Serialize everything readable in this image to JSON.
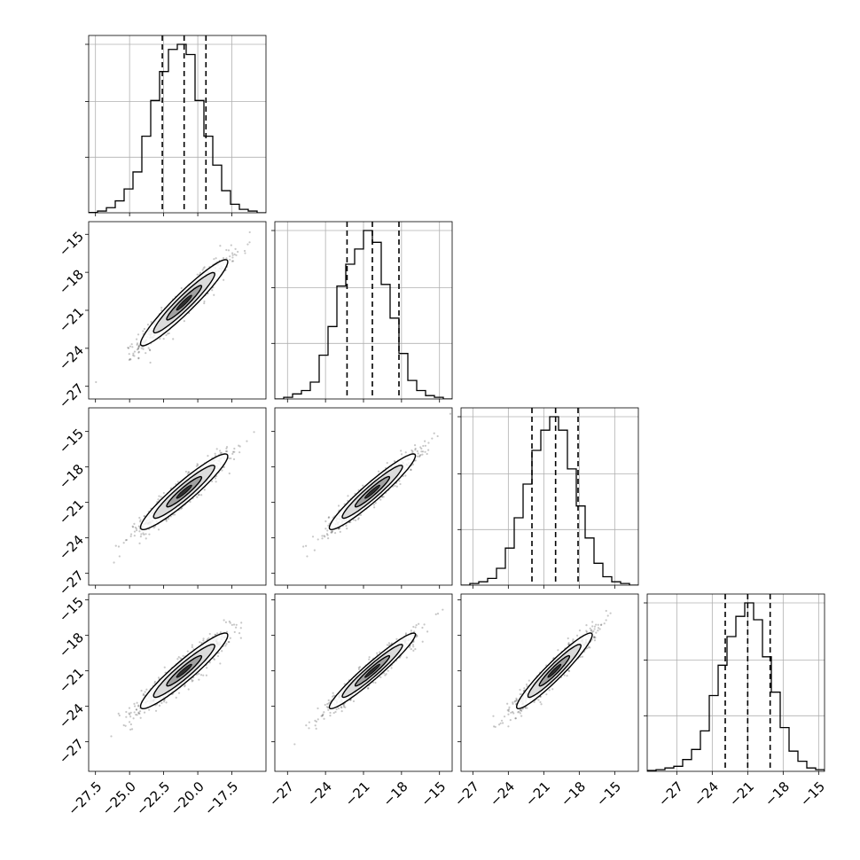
{
  "chart_data": {
    "type": "corner",
    "dimensions": 4,
    "grid": true,
    "hist_bins": 20,
    "colors": {
      "line": "#000000",
      "grid": "#b0b0b0",
      "points": "#000000"
    },
    "axes": [
      {
        "range": [
          -28.0,
          -15.0
        ],
        "ticks": [
          -27.5,
          -25.0,
          -22.5,
          -20.0,
          -17.5
        ],
        "tick_labels": [
          "−27.5",
          "−25.0",
          "−22.5",
          "−20.0",
          "−17.5"
        ]
      },
      {
        "range": [
          -28.0,
          -14.0
        ],
        "ticks": [
          -27,
          -24,
          -21,
          -18,
          -15
        ],
        "tick_labels": [
          "−27",
          "−24",
          "−21",
          "−18",
          "−15"
        ]
      },
      {
        "range": [
          -28.0,
          -13.0
        ],
        "ticks": [
          -27,
          -24,
          -21,
          -18,
          -15
        ],
        "tick_labels": [
          "−27",
          "−24",
          "−21",
          "−18",
          "−15"
        ]
      },
      {
        "range": [
          -29.5,
          -14.5
        ],
        "ticks": [
          -27,
          -24,
          -21,
          -18,
          -15
        ],
        "tick_labels": [
          "−27",
          "−24",
          "−21",
          "−18",
          "−15"
        ]
      }
    ],
    "histograms": [
      {
        "dim": 0,
        "bin_start": -28.0,
        "bin_width": 0.65,
        "counts": [
          0.2,
          1,
          3,
          7,
          14,
          24,
          45,
          66,
          83,
          96,
          99,
          93,
          66,
          45,
          28,
          13,
          5,
          2,
          1,
          0
        ],
        "quantiles": [
          -22.6,
          -21.0,
          -19.4
        ]
      },
      {
        "dim": 1,
        "bin_start": -28.0,
        "bin_width": 0.7,
        "counts": [
          0,
          1,
          3,
          5,
          10,
          26,
          43,
          67,
          80,
          89,
          100,
          93,
          68,
          48,
          27,
          11,
          5,
          2,
          1,
          0
        ],
        "quantiles": [
          -22.3,
          -20.3,
          -18.2
        ]
      },
      {
        "dim": 2,
        "bin_start": -28.0,
        "bin_width": 0.75,
        "counts": [
          0,
          1,
          2,
          4,
          10,
          22,
          40,
          60,
          80,
          92,
          100,
          92,
          69,
          47,
          28,
          13,
          5,
          2,
          1,
          0
        ],
        "quantiles": [
          -22.0,
          -20.0,
          -18.1
        ]
      },
      {
        "dim": 3,
        "bin_start": -29.5,
        "bin_width": 0.75,
        "counts": [
          0.5,
          1,
          2,
          3,
          7,
          13,
          24,
          45,
          63,
          80,
          92,
          100,
          90,
          68,
          47,
          26,
          12,
          6,
          2,
          1
        ],
        "quantiles": [
          -22.9,
          -21.0,
          -19.1
        ]
      }
    ],
    "pairs": [
      {
        "row": 1,
        "col": 0,
        "x_mean": -21.0,
        "y_mean": -20.4,
        "x_sd": 1.6,
        "y_sd": 1.7,
        "corr": 0.95
      },
      {
        "row": 2,
        "col": 0,
        "x_mean": -21.0,
        "y_mean": -20.1,
        "x_sd": 1.6,
        "y_sd": 1.6,
        "corr": 0.94
      },
      {
        "row": 2,
        "col": 1,
        "x_mean": -20.3,
        "y_mean": -20.1,
        "x_sd": 1.7,
        "y_sd": 1.6,
        "corr": 0.95
      },
      {
        "row": 3,
        "col": 0,
        "x_mean": -21.0,
        "y_mean": -21.0,
        "x_sd": 1.6,
        "y_sd": 1.6,
        "corr": 0.94
      },
      {
        "row": 3,
        "col": 1,
        "x_mean": -20.3,
        "y_mean": -21.0,
        "x_sd": 1.7,
        "y_sd": 1.6,
        "corr": 0.96
      },
      {
        "row": 3,
        "col": 2,
        "x_mean": -20.1,
        "y_mean": -21.0,
        "x_sd": 1.6,
        "y_sd": 1.6,
        "corr": 0.95
      }
    ]
  }
}
